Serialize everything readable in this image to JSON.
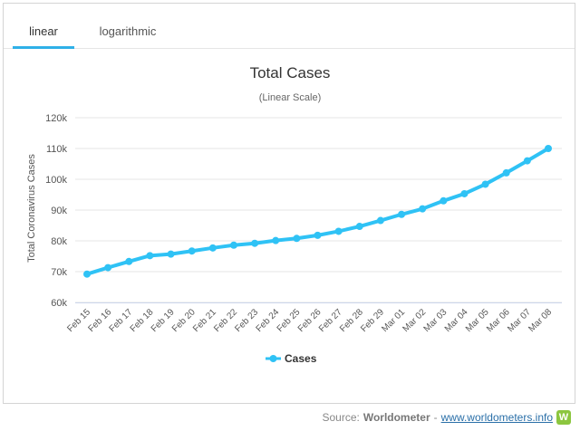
{
  "tabs": [
    {
      "label": "linear",
      "active": true
    },
    {
      "label": "logarithmic",
      "active": false
    }
  ],
  "footer": {
    "source_label": "Source:",
    "brand": "Worldometer",
    "separator": "-",
    "link_text": "www.worldometers.info",
    "logo_letter": "W"
  },
  "colors": {
    "series": "#2fc2f5",
    "tab_accent": "#2fb0e8",
    "logo": "#8cc63f"
  },
  "chart_data": {
    "type": "line",
    "title": "Total Cases",
    "subtitle": "(Linear Scale)",
    "xlabel": "",
    "ylabel": "Total Coronavirus Cases",
    "ylim": [
      60000,
      120000
    ],
    "yticks": [
      60000,
      70000,
      80000,
      90000,
      100000,
      110000,
      120000
    ],
    "ytick_labels": [
      "60k",
      "70k",
      "80k",
      "90k",
      "100k",
      "110k",
      "120k"
    ],
    "grid": true,
    "legend": "bottom-center",
    "categories": [
      "Feb 15",
      "Feb 16",
      "Feb 17",
      "Feb 18",
      "Feb 19",
      "Feb 20",
      "Feb 21",
      "Feb 22",
      "Feb 23",
      "Feb 24",
      "Feb 25",
      "Feb 26",
      "Feb 27",
      "Feb 28",
      "Feb 29",
      "Mar 01",
      "Mar 02",
      "Mar 03",
      "Mar 04",
      "Mar 05",
      "Mar 06",
      "Mar 07",
      "Mar 08"
    ],
    "series": [
      {
        "name": "Cases",
        "values": [
          69200,
          71300,
          73300,
          75200,
          75700,
          76700,
          77700,
          78600,
          79200,
          80100,
          80800,
          81800,
          83100,
          84700,
          86600,
          88600,
          90400,
          93000,
          95300,
          98400,
          102100,
          106000,
          110000
        ]
      }
    ]
  }
}
